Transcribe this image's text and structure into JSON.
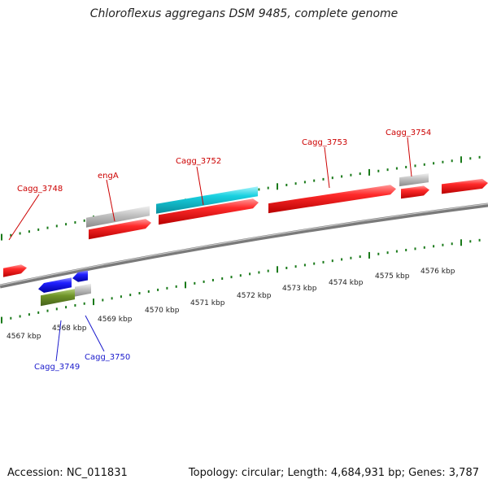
{
  "title": "Chloroflexus aggregans DSM 9485, complete genome",
  "accession": "Accession: NC_011831",
  "summary": "Topology: circular; Length: 4,684,931 bp; Genes: 3,787",
  "colors": {
    "forward_gene": "#ee1111",
    "reverse_gene": "#1a1ae0",
    "cyan_feature": "#11c8d8",
    "olive_feature": "#6b8e23",
    "gray_feature": "#b8b8b8",
    "ticks": "#1a7a1a",
    "forward_label": "#cc0000",
    "reverse_label": "#1a1acc"
  },
  "kbp_labels": [
    "4567 kbp",
    "4568 kbp",
    "4569 kbp",
    "4570 kbp",
    "4571 kbp",
    "4572 kbp",
    "4573 kbp",
    "4574 kbp",
    "4575 kbp",
    "4576 kbp"
  ],
  "gene_labels": {
    "cagg_3748": "Cagg_3748",
    "enga": "engA",
    "cagg_3752": "Cagg_3752",
    "cagg_3753": "Cagg_3753",
    "cagg_3754": "Cagg_3754",
    "cagg_3749": "Cagg_3749",
    "cagg_3750": "Cagg_3750"
  }
}
